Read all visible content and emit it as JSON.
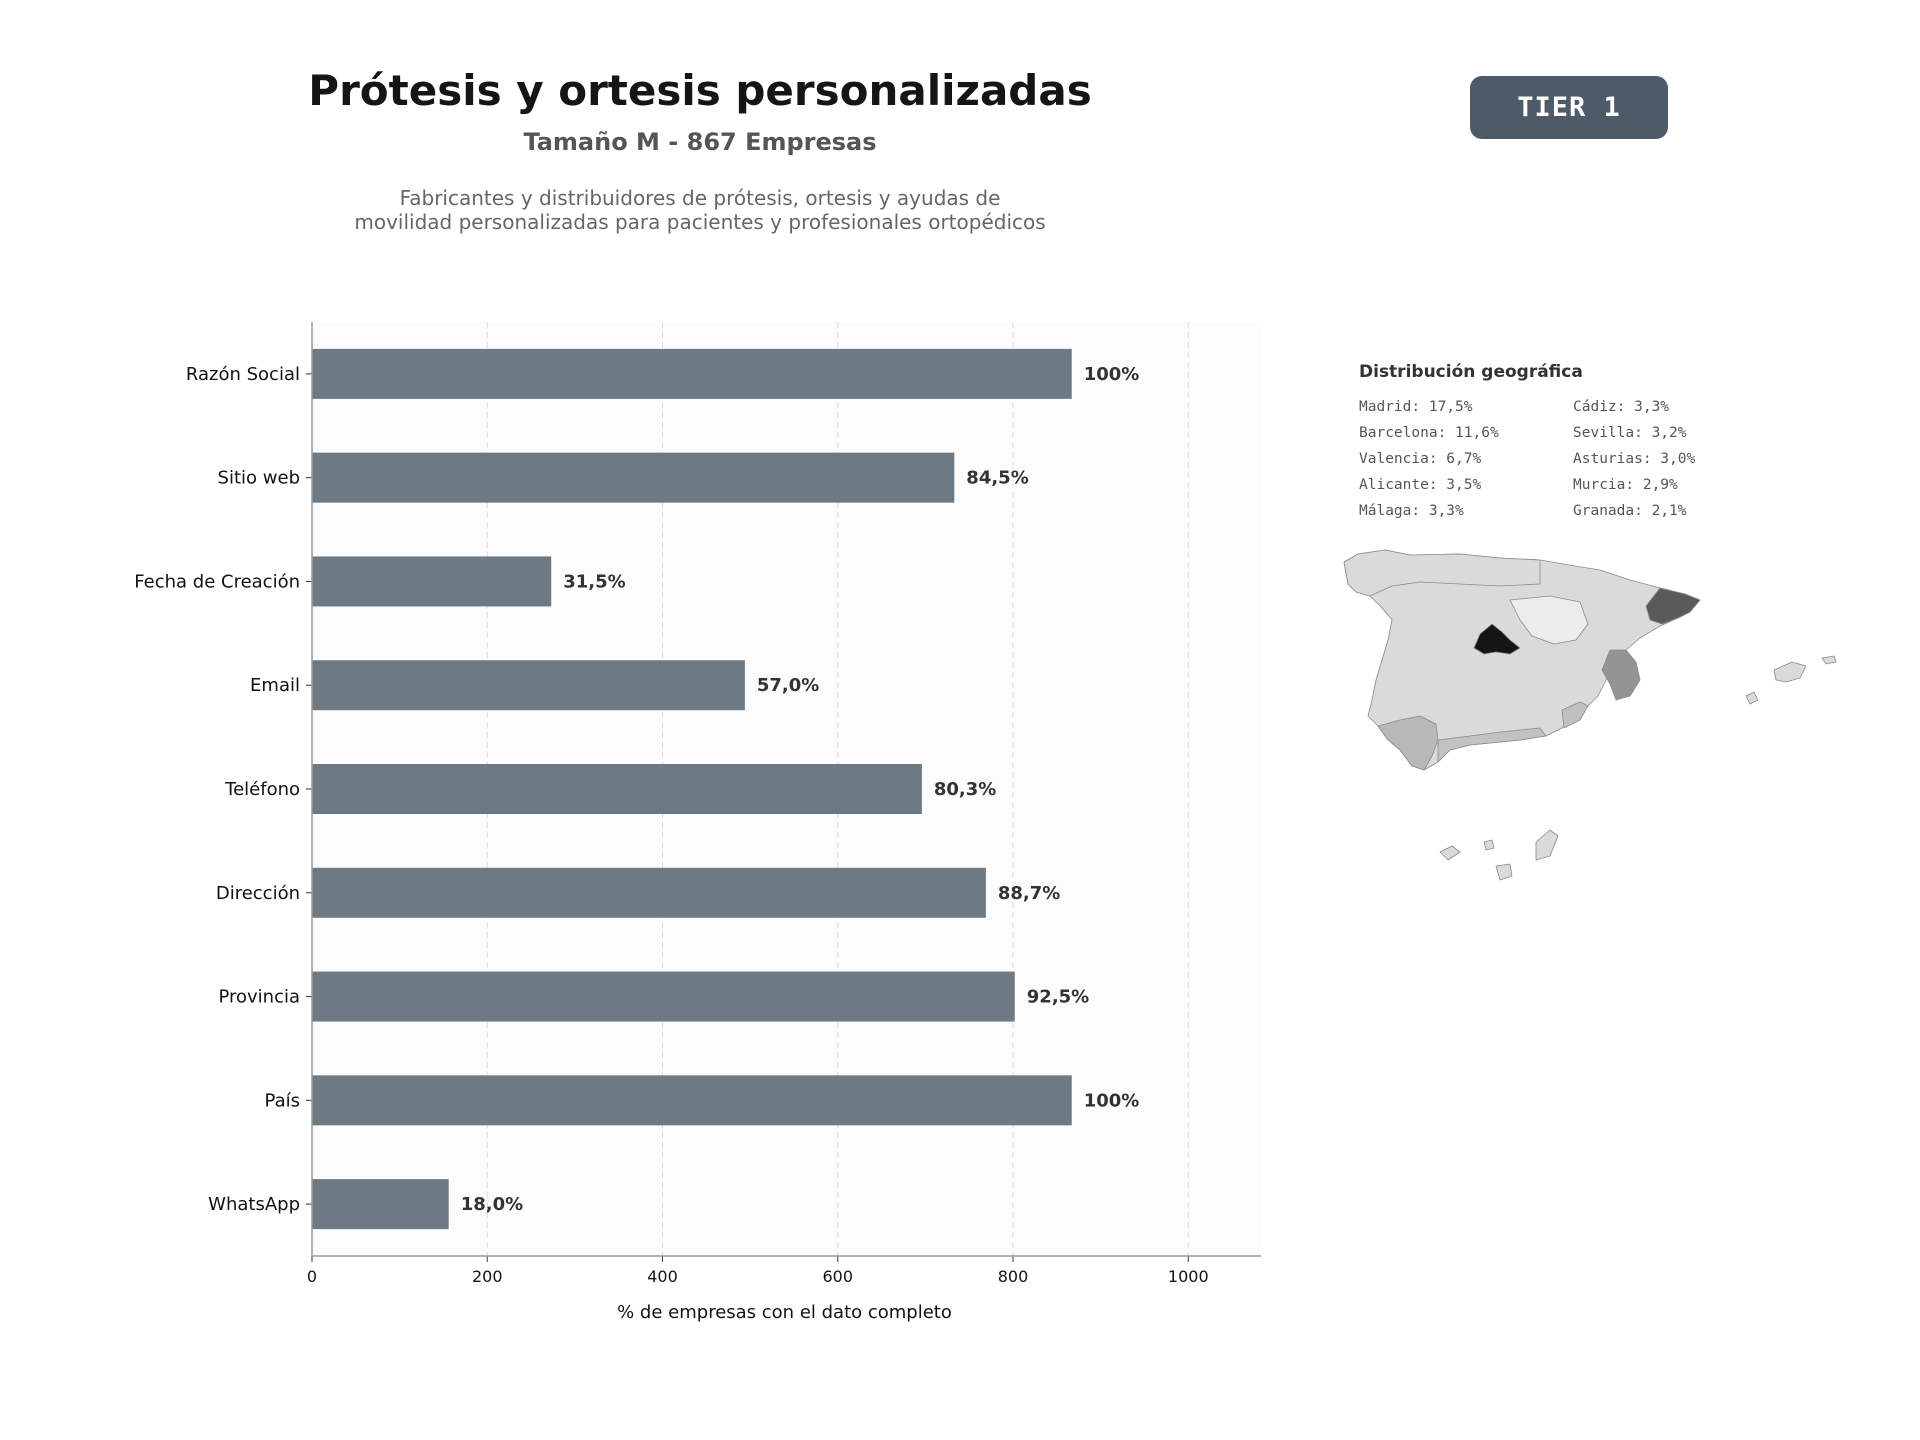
{
  "header": {
    "title": "Prótesis y ortesis personalizadas",
    "subtitle": "Tamaño M - 867 Empresas",
    "description_line1": "Fabricantes y distribuidores de prótesis, ortesis y ayudas de",
    "description_line2": "movilidad personalizadas para pacientes y profesionales ortopédicos",
    "tier_badge": "TIER 1"
  },
  "colors": {
    "bar": "#6e7a83",
    "tier_badge": "#4d5a67",
    "map_highlight_madrid": "#151515",
    "map_highlight_barcelona": "#5a5a5a",
    "map_highlight_valencia": "#949494",
    "map_default": "#dadada"
  },
  "chart_data": {
    "type": "bar",
    "orientation": "horizontal",
    "categories": [
      "Razón Social",
      "Sitio web",
      "Fecha de Creación",
      "Email",
      "Teléfono",
      "Dirección",
      "Provincia",
      "País",
      "WhatsApp"
    ],
    "values": [
      867,
      733,
      273,
      494,
      696,
      769,
      802,
      867,
      156
    ],
    "data_labels": [
      "100%",
      "84,5%",
      "31,5%",
      "57,0%",
      "80,3%",
      "88,7%",
      "92,5%",
      "100%",
      "18,0%"
    ],
    "xlabel": "% de empresas con el dato completo",
    "ylabel": "",
    "xlim": [
      0,
      1083
    ],
    "xticks": [
      0,
      200,
      400,
      600,
      800,
      1000
    ],
    "grid": "vertical dashed"
  },
  "geo": {
    "title": "Distribución geográfica",
    "items": [
      "Madrid: 17,5%",
      "Cádiz: 3,3%",
      "Barcelona: 11,6%",
      "Sevilla: 3,2%",
      "Valencia: 6,7%",
      "Asturias: 3,0%",
      "Alicante: 3,5%",
      "Murcia: 2,9%",
      "Málaga: 3,3%",
      "Granada: 2,1%"
    ]
  }
}
